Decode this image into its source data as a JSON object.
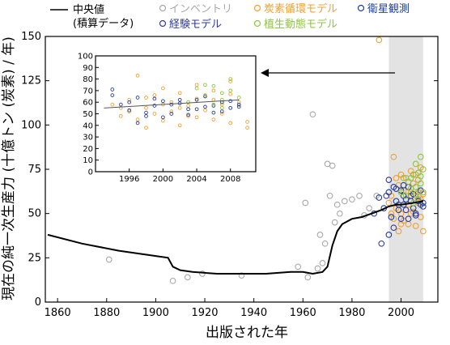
{
  "chart_data": {
    "type": "scatter",
    "xlabel": "出版された年",
    "ylabel": "現在の純一次生産力 (十億トン (炭素) / 年)",
    "xlim": [
      1855,
      2015
    ],
    "ylim": [
      0,
      150
    ],
    "xticks": [
      "1860",
      "1880",
      "1900",
      "1920",
      "1940",
      "1960",
      "1980",
      "2000"
    ],
    "yticks": [
      "0",
      "25",
      "50",
      "75",
      "100",
      "125",
      "150"
    ],
    "legend": {
      "median_line": [
        "中央値",
        "(積算データ)"
      ],
      "series_labels": [
        "インベントリ",
        "炭素循環モデル",
        "衛星観測",
        "経験モデル",
        "植生動態モデル"
      ]
    },
    "shaded_range": [
      1995,
      2009
    ],
    "colors": {
      "inventory": "#a8a8a8",
      "carbon_cycle": "#f0a030",
      "satellite": "#1f3f9a",
      "empirical": "#303aa0",
      "vegetation": "#8ec63f",
      "median": "#000000",
      "shade": "#e3e3e3"
    },
    "series": [
      {
        "key": "inventory",
        "points": [
          [
            1881,
            24
          ],
          [
            1907,
            12
          ],
          [
            1913,
            14
          ],
          [
            1919,
            16
          ],
          [
            1935,
            15
          ],
          [
            1958,
            20
          ],
          [
            1961,
            56
          ],
          [
            1962,
            14
          ],
          [
            1964,
            106
          ],
          [
            1966,
            19
          ],
          [
            1967,
            38
          ],
          [
            1968,
            22
          ],
          [
            1969,
            33
          ],
          [
            1970,
            78
          ],
          [
            1971,
            60
          ],
          [
            1972,
            77
          ],
          [
            1973,
            45
          ],
          [
            1974,
            55
          ],
          [
            1975,
            50
          ],
          [
            1977,
            57
          ],
          [
            1980,
            58
          ],
          [
            1983,
            60
          ],
          [
            1985,
            49
          ],
          [
            1987,
            53
          ],
          [
            1990,
            60
          ]
        ]
      },
      {
        "key": "carbon_cycle",
        "points": [
          [
            1991,
            148
          ],
          [
            1995,
            56
          ],
          [
            1996,
            60
          ],
          [
            1997,
            82
          ],
          [
            1997,
            47
          ],
          [
            1998,
            53
          ],
          [
            1999,
            40
          ],
          [
            1999,
            66
          ],
          [
            2000,
            72
          ],
          [
            2000,
            50
          ],
          [
            2001,
            63
          ],
          [
            2001,
            46
          ],
          [
            2002,
            58
          ],
          [
            2002,
            70
          ],
          [
            2003,
            44
          ],
          [
            2003,
            55
          ],
          [
            2004,
            62
          ],
          [
            2004,
            74
          ],
          [
            2005,
            51
          ],
          [
            2005,
            67
          ],
          [
            2006,
            60
          ],
          [
            2006,
            43
          ],
          [
            2007,
            56
          ],
          [
            2007,
            69
          ],
          [
            2008,
            48
          ],
          [
            2008,
            76
          ],
          [
            2009,
            40
          ],
          [
            2009,
            61
          ],
          [
            1998,
            70
          ],
          [
            2000,
            44
          ],
          [
            2002,
            52
          ],
          [
            2004,
            50
          ],
          [
            2006,
            72
          ],
          [
            2008,
            58
          ],
          [
            1996,
            50
          ],
          [
            2007,
            62
          ]
        ]
      },
      {
        "key": "satellite",
        "points": [
          [
            1989,
            50
          ],
          [
            1991,
            59
          ],
          [
            1993,
            53
          ],
          [
            1995,
            62
          ],
          [
            1996,
            48
          ],
          [
            1997,
            65
          ],
          [
            1998,
            57
          ],
          [
            1999,
            52
          ],
          [
            2000,
            63
          ],
          [
            2001,
            55
          ],
          [
            2002,
            58
          ],
          [
            2003,
            47
          ],
          [
            2004,
            60
          ],
          [
            2005,
            53
          ],
          [
            2006,
            50
          ],
          [
            2007,
            57
          ],
          [
            2008,
            55
          ],
          [
            2009,
            54
          ],
          [
            1995,
            38
          ],
          [
            2001,
            66
          ]
        ]
      },
      {
        "key": "empirical",
        "points": [
          [
            1992,
            33
          ],
          [
            1994,
            60
          ],
          [
            1995,
            69
          ],
          [
            1997,
            42
          ],
          [
            1998,
            64
          ],
          [
            1999,
            55
          ],
          [
            2000,
            47
          ],
          [
            2001,
            60
          ],
          [
            2002,
            52
          ],
          [
            2003,
            65
          ],
          [
            2004,
            57
          ],
          [
            2005,
            61
          ],
          [
            2006,
            49
          ],
          [
            2007,
            58
          ],
          [
            2008,
            63
          ],
          [
            2009,
            56
          ]
        ]
      },
      {
        "key": "vegetation",
        "points": [
          [
            2000,
            62
          ],
          [
            2001,
            70
          ],
          [
            2002,
            60
          ],
          [
            2003,
            68
          ],
          [
            2004,
            64
          ],
          [
            2005,
            72
          ],
          [
            2005,
            56
          ],
          [
            2006,
            65
          ],
          [
            2006,
            78
          ],
          [
            2007,
            58
          ],
          [
            2007,
            73
          ],
          [
            2008,
            67
          ],
          [
            2008,
            82
          ],
          [
            2009,
            62
          ],
          [
            2009,
            75
          ],
          [
            2004,
            70
          ],
          [
            2006,
            61
          ],
          [
            2008,
            71
          ]
        ]
      }
    ],
    "median_line": [
      [
        1856,
        38
      ],
      [
        1870,
        33
      ],
      [
        1885,
        29
      ],
      [
        1900,
        26
      ],
      [
        1905,
        25
      ],
      [
        1907,
        20
      ],
      [
        1910,
        18
      ],
      [
        1915,
        17
      ],
      [
        1925,
        16
      ],
      [
        1945,
        16
      ],
      [
        1955,
        17
      ],
      [
        1960,
        17
      ],
      [
        1964,
        16
      ],
      [
        1968,
        17
      ],
      [
        1970,
        20
      ],
      [
        1972,
        32
      ],
      [
        1974,
        40
      ],
      [
        1976,
        44
      ],
      [
        1980,
        47
      ],
      [
        1984,
        48
      ],
      [
        1988,
        50
      ],
      [
        1990,
        51
      ],
      [
        1992,
        52
      ],
      [
        1995,
        54
      ],
      [
        1998,
        55
      ],
      [
        2000,
        55
      ],
      [
        2005,
        56
      ],
      [
        2009,
        57
      ]
    ],
    "inset": {
      "xlim": [
        1992,
        2011
      ],
      "ylim": [
        0,
        100
      ],
      "xticks": [
        "1996",
        "2000",
        "2004",
        "2008"
      ],
      "yticks": [
        "0",
        "10",
        "20",
        "30",
        "40",
        "50",
        "60",
        "70",
        "80",
        "90",
        "100"
      ],
      "trend_line": [
        [
          1993,
          55
        ],
        [
          2009,
          62
        ]
      ],
      "series": [
        {
          "key": "carbon_cycle",
          "points": [
            [
              1994,
              58
            ],
            [
              1995,
              48
            ],
            [
              1996,
              62
            ],
            [
              1997,
              83
            ],
            [
              1997,
              45
            ],
            [
              1998,
              55
            ],
            [
              1998,
              38
            ],
            [
              1999,
              66
            ],
            [
              1999,
              50
            ],
            [
              2000,
              72
            ],
            [
              2000,
              44
            ],
            [
              2001,
              60
            ],
            [
              2001,
              52
            ],
            [
              2002,
              68
            ],
            [
              2002,
              40
            ],
            [
              2003,
              57
            ],
            [
              2003,
              48
            ],
            [
              2004,
              63
            ],
            [
              2004,
              75
            ],
            [
              2005,
              53
            ],
            [
              2005,
              65
            ],
            [
              2006,
              45
            ],
            [
              2006,
              70
            ],
            [
              2007,
              58
            ],
            [
              2007,
              50
            ],
            [
              2008,
              78
            ],
            [
              2008,
              42
            ],
            [
              2009,
              60
            ],
            [
              2010,
              43
            ],
            [
              2010,
              38
            ],
            [
              1996,
              52
            ],
            [
              1998,
              64
            ],
            [
              2000,
              58
            ],
            [
              2002,
              55
            ],
            [
              2004,
              47
            ],
            [
              2006,
              62
            ],
            [
              2008,
              67
            ],
            [
              1995,
              55
            ]
          ]
        },
        {
          "key": "satellite",
          "points": [
            [
              1994,
              71
            ],
            [
              1995,
              58
            ],
            [
              1996,
              53
            ],
            [
              1997,
              64
            ],
            [
              1998,
              48
            ],
            [
              1999,
              57
            ],
            [
              2000,
              61
            ],
            [
              2001,
              50
            ],
            [
              2002,
              59
            ],
            [
              2003,
              54
            ],
            [
              2004,
              62
            ],
            [
              2005,
              56
            ],
            [
              2006,
              51
            ],
            [
              2007,
              60
            ],
            [
              2008,
              55
            ],
            [
              2009,
              58
            ]
          ]
        },
        {
          "key": "empirical",
          "points": [
            [
              1994,
              66
            ],
            [
              1996,
              60
            ],
            [
              1997,
              42
            ],
            [
              1998,
              51
            ],
            [
              1999,
              63
            ],
            [
              2000,
              47
            ],
            [
              2001,
              58
            ],
            [
              2002,
              62
            ],
            [
              2003,
              49
            ],
            [
              2004,
              54
            ],
            [
              2005,
              65
            ],
            [
              2006,
              57
            ],
            [
              2007,
              52
            ],
            [
              2008,
              61
            ],
            [
              2009,
              56
            ]
          ]
        },
        {
          "key": "vegetation",
          "points": [
            [
              2003,
              60
            ],
            [
              2004,
              72
            ],
            [
              2005,
              66
            ],
            [
              2006,
              58
            ],
            [
              2006,
              74
            ],
            [
              2007,
              68
            ],
            [
              2007,
              62
            ],
            [
              2008,
              80
            ],
            [
              2008,
              70
            ],
            [
              2009,
              64
            ],
            [
              2005,
              75
            ],
            [
              2007,
              55
            ]
          ]
        }
      ]
    }
  }
}
